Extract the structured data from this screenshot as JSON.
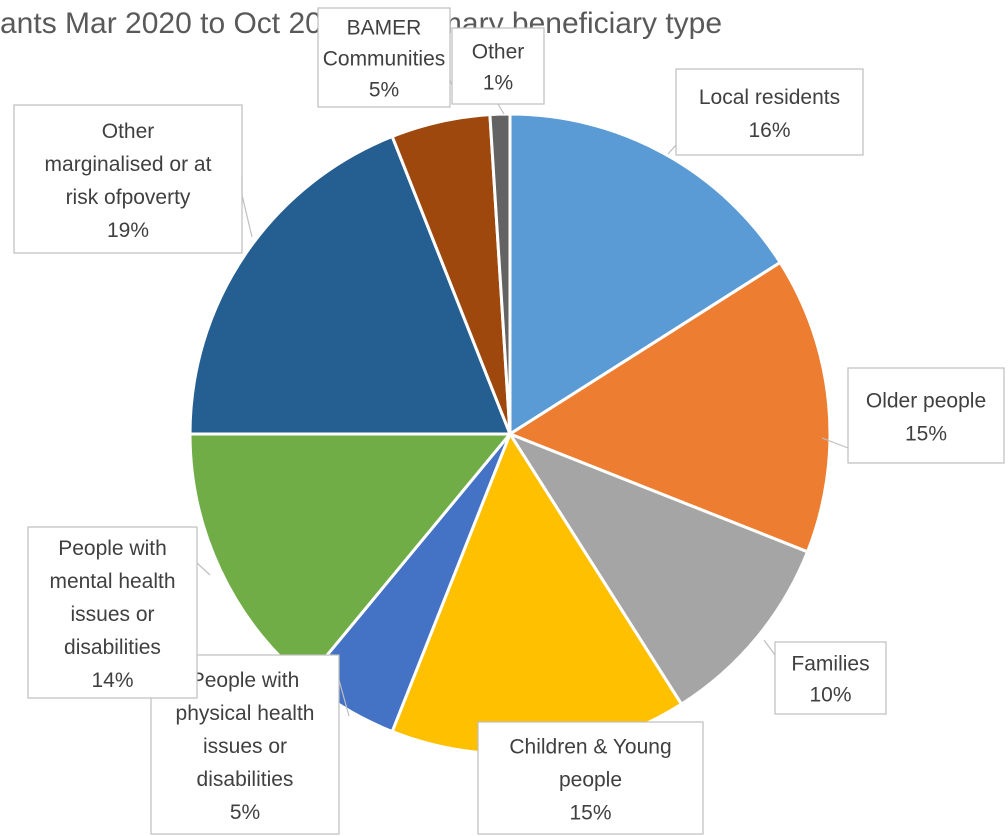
{
  "chart_data": {
    "type": "pie",
    "title": "ants Mar 2020 to Oct 2020 by primary beneficiary type",
    "slices": [
      {
        "label": "Local residents",
        "label_lines": [
          "Local residents"
        ],
        "pct_text": "16%",
        "value": 16,
        "color": "#5B9BD5"
      },
      {
        "label": "Older people",
        "label_lines": [
          "Older people"
        ],
        "pct_text": "15%",
        "value": 15,
        "color": "#ED7D31"
      },
      {
        "label": "Families",
        "label_lines": [
          "Families"
        ],
        "pct_text": "10%",
        "value": 10,
        "color": "#A5A5A5"
      },
      {
        "label": "Children & Young people",
        "label_lines": [
          "Children & Young",
          "people"
        ],
        "pct_text": "15%",
        "value": 15,
        "color": "#FFC000"
      },
      {
        "label": "People with physical health issues or disabilities",
        "label_lines": [
          "People with",
          "physical health",
          "issues or",
          "disabilities"
        ],
        "pct_text": "5%",
        "value": 5,
        "color": "#4472C4"
      },
      {
        "label": "People with mental health issues or disabilities",
        "label_lines": [
          "People with",
          "mental health",
          "issues or",
          "disabilities"
        ],
        "pct_text": "14%",
        "value": 14,
        "color": "#70AD47"
      },
      {
        "label": "Other marginalised or at risk ofpoverty",
        "label_lines": [
          "Other",
          "marginalised or at",
          "risk ofpoverty"
        ],
        "pct_text": "19%",
        "value": 19,
        "color": "#255E91"
      },
      {
        "label": "BAMER Communities",
        "label_lines": [
          "BAMER",
          "Communities"
        ],
        "pct_text": "5%",
        "value": 5,
        "color": "#9E480E"
      },
      {
        "label": "Other",
        "label_lines": [
          "Other"
        ],
        "pct_text": "1%",
        "value": 1,
        "color": "#636363"
      }
    ],
    "legend": "none",
    "data_labels": "category name and percentage"
  }
}
